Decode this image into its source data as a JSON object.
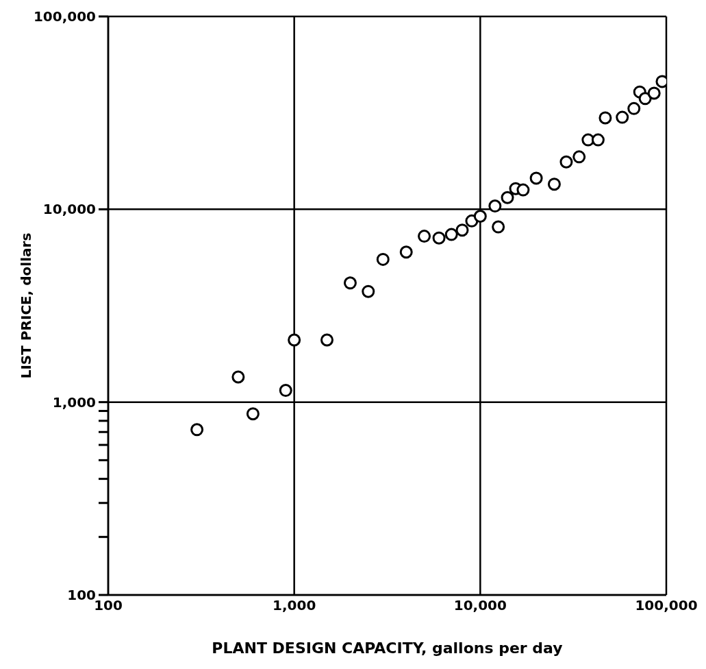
{
  "chart_data": {
    "type": "scatter",
    "xlabel": "PLANT DESIGN CAPACITY, gallons per day",
    "ylabel": "LIST PRICE, dollars",
    "log": "xy",
    "grid": true,
    "marker": "circle",
    "legend": false,
    "xlim": [
      100,
      100000
    ],
    "ylim": [
      100,
      100000
    ],
    "xticks": [
      {
        "value": 100,
        "label": "100"
      },
      {
        "value": 1000,
        "label": "1,000"
      },
      {
        "value": 10000,
        "label": "10,000"
      },
      {
        "value": 100000,
        "label": "100,000"
      }
    ],
    "yticks": [
      {
        "value": 100,
        "label": "100"
      },
      {
        "value": 200,
        "label": null
      },
      {
        "value": 300,
        "label": null
      },
      {
        "value": 400,
        "label": null
      },
      {
        "value": 500,
        "label": null
      },
      {
        "value": 600,
        "label": null
      },
      {
        "value": 700,
        "label": null
      },
      {
        "value": 800,
        "label": null
      },
      {
        "value": 900,
        "label": null
      },
      {
        "value": 1000,
        "label": "1,000"
      },
      {
        "value": 10000,
        "label": "10,000"
      },
      {
        "value": 100000,
        "label": "100,000"
      }
    ],
    "x": [
      300,
      500,
      600,
      900,
      1000,
      1500,
      2000,
      2500,
      3000,
      4000,
      5000,
      6000,
      7000,
      8000,
      9000,
      10000,
      12000,
      12500,
      14000,
      15500,
      17000,
      20000,
      25000,
      29000,
      34000,
      38000,
      43000,
      47000,
      58000,
      67000,
      72000,
      77000,
      86000,
      95000
    ],
    "series": [
      {
        "color": "#000000",
        "values": [
          720,
          1350,
          870,
          1150,
          2100,
          2100,
          4150,
          3750,
          5500,
          6000,
          7250,
          7100,
          7400,
          7800,
          8700,
          9200,
          10400,
          8100,
          11500,
          12800,
          12600,
          14500,
          13500,
          17600,
          18700,
          22900,
          22900,
          29800,
          30000,
          33300,
          40600,
          37500,
          40000,
          46000
        ]
      }
    ]
  }
}
